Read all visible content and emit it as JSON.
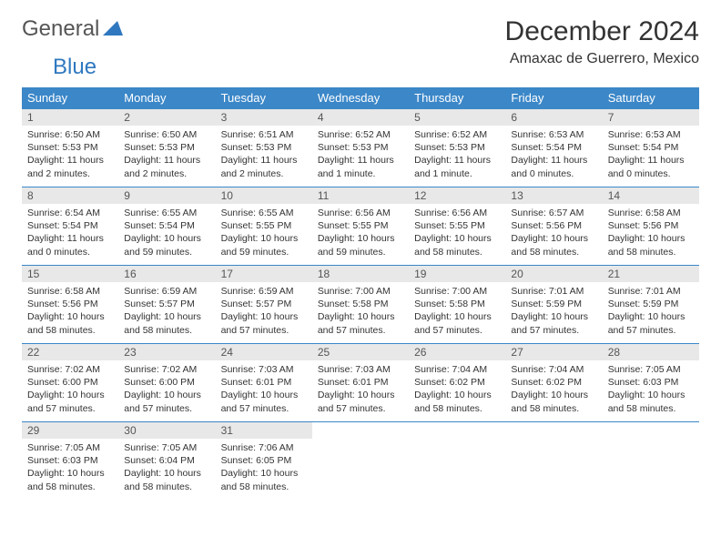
{
  "logo": {
    "text1": "General",
    "text2": "Blue",
    "color1": "#555555",
    "color2": "#2f78c0"
  },
  "title": "December 2024",
  "location": "Amaxac de Guerrero, Mexico",
  "header_bg": "#3b87c8",
  "daynum_bg": "#e8e8e8",
  "weekdays": [
    "Sunday",
    "Monday",
    "Tuesday",
    "Wednesday",
    "Thursday",
    "Friday",
    "Saturday"
  ],
  "days": [
    {
      "n": "1",
      "sr": "6:50 AM",
      "ss": "5:53 PM",
      "dl": "11 hours and 2 minutes."
    },
    {
      "n": "2",
      "sr": "6:50 AM",
      "ss": "5:53 PM",
      "dl": "11 hours and 2 minutes."
    },
    {
      "n": "3",
      "sr": "6:51 AM",
      "ss": "5:53 PM",
      "dl": "11 hours and 2 minutes."
    },
    {
      "n": "4",
      "sr": "6:52 AM",
      "ss": "5:53 PM",
      "dl": "11 hours and 1 minute."
    },
    {
      "n": "5",
      "sr": "6:52 AM",
      "ss": "5:53 PM",
      "dl": "11 hours and 1 minute."
    },
    {
      "n": "6",
      "sr": "6:53 AM",
      "ss": "5:54 PM",
      "dl": "11 hours and 0 minutes."
    },
    {
      "n": "7",
      "sr": "6:53 AM",
      "ss": "5:54 PM",
      "dl": "11 hours and 0 minutes."
    },
    {
      "n": "8",
      "sr": "6:54 AM",
      "ss": "5:54 PM",
      "dl": "11 hours and 0 minutes."
    },
    {
      "n": "9",
      "sr": "6:55 AM",
      "ss": "5:54 PM",
      "dl": "10 hours and 59 minutes."
    },
    {
      "n": "10",
      "sr": "6:55 AM",
      "ss": "5:55 PM",
      "dl": "10 hours and 59 minutes."
    },
    {
      "n": "11",
      "sr": "6:56 AM",
      "ss": "5:55 PM",
      "dl": "10 hours and 59 minutes."
    },
    {
      "n": "12",
      "sr": "6:56 AM",
      "ss": "5:55 PM",
      "dl": "10 hours and 58 minutes."
    },
    {
      "n": "13",
      "sr": "6:57 AM",
      "ss": "5:56 PM",
      "dl": "10 hours and 58 minutes."
    },
    {
      "n": "14",
      "sr": "6:58 AM",
      "ss": "5:56 PM",
      "dl": "10 hours and 58 minutes."
    },
    {
      "n": "15",
      "sr": "6:58 AM",
      "ss": "5:56 PM",
      "dl": "10 hours and 58 minutes."
    },
    {
      "n": "16",
      "sr": "6:59 AM",
      "ss": "5:57 PM",
      "dl": "10 hours and 58 minutes."
    },
    {
      "n": "17",
      "sr": "6:59 AM",
      "ss": "5:57 PM",
      "dl": "10 hours and 57 minutes."
    },
    {
      "n": "18",
      "sr": "7:00 AM",
      "ss": "5:58 PM",
      "dl": "10 hours and 57 minutes."
    },
    {
      "n": "19",
      "sr": "7:00 AM",
      "ss": "5:58 PM",
      "dl": "10 hours and 57 minutes."
    },
    {
      "n": "20",
      "sr": "7:01 AM",
      "ss": "5:59 PM",
      "dl": "10 hours and 57 minutes."
    },
    {
      "n": "21",
      "sr": "7:01 AM",
      "ss": "5:59 PM",
      "dl": "10 hours and 57 minutes."
    },
    {
      "n": "22",
      "sr": "7:02 AM",
      "ss": "6:00 PM",
      "dl": "10 hours and 57 minutes."
    },
    {
      "n": "23",
      "sr": "7:02 AM",
      "ss": "6:00 PM",
      "dl": "10 hours and 57 minutes."
    },
    {
      "n": "24",
      "sr": "7:03 AM",
      "ss": "6:01 PM",
      "dl": "10 hours and 57 minutes."
    },
    {
      "n": "25",
      "sr": "7:03 AM",
      "ss": "6:01 PM",
      "dl": "10 hours and 57 minutes."
    },
    {
      "n": "26",
      "sr": "7:04 AM",
      "ss": "6:02 PM",
      "dl": "10 hours and 58 minutes."
    },
    {
      "n": "27",
      "sr": "7:04 AM",
      "ss": "6:02 PM",
      "dl": "10 hours and 58 minutes."
    },
    {
      "n": "28",
      "sr": "7:05 AM",
      "ss": "6:03 PM",
      "dl": "10 hours and 58 minutes."
    },
    {
      "n": "29",
      "sr": "7:05 AM",
      "ss": "6:03 PM",
      "dl": "10 hours and 58 minutes."
    },
    {
      "n": "30",
      "sr": "7:05 AM",
      "ss": "6:04 PM",
      "dl": "10 hours and 58 minutes."
    },
    {
      "n": "31",
      "sr": "7:06 AM",
      "ss": "6:05 PM",
      "dl": "10 hours and 58 minutes."
    }
  ],
  "labels": {
    "sunrise": "Sunrise:",
    "sunset": "Sunset:",
    "daylight": "Daylight:"
  }
}
